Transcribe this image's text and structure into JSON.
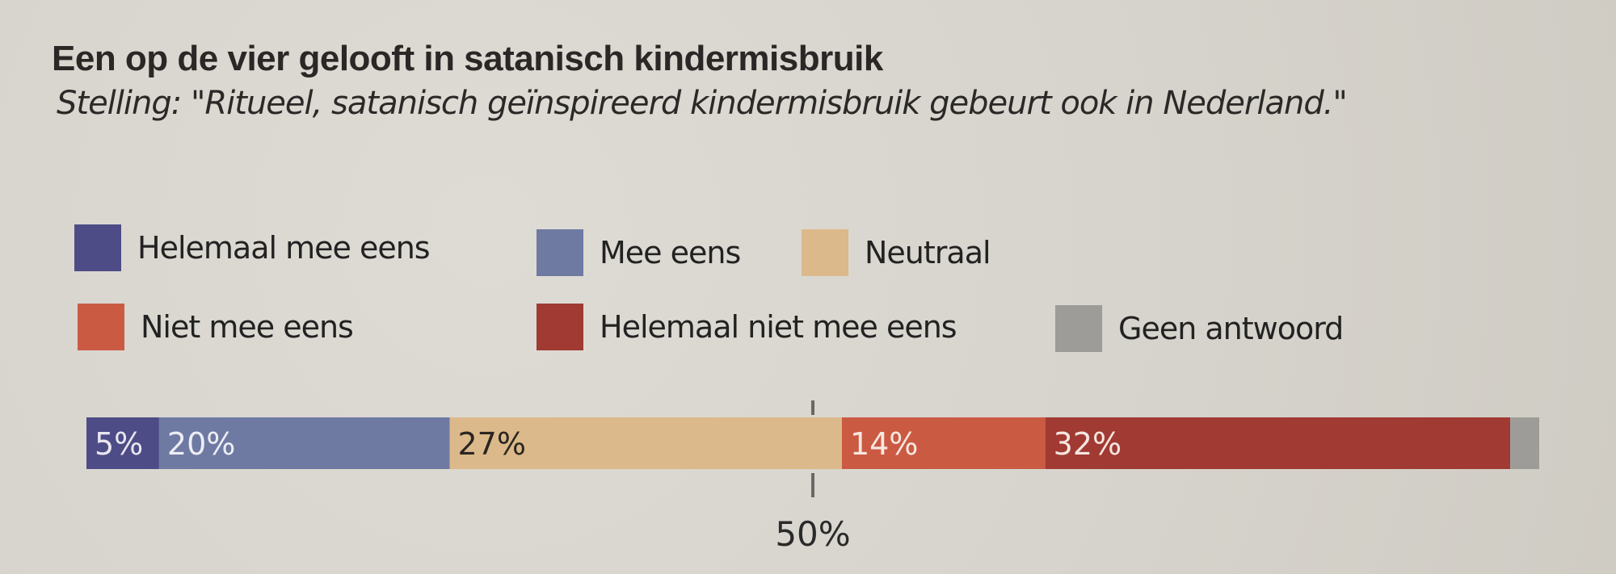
{
  "header": {
    "title": "Een op de vier gelooft in satanisch kindermisbruik",
    "subtitle": "Stelling: \"Ritueel, satanisch geïnspireerd kindermisbruik gebeurt ook in Nederland.\""
  },
  "chart_data": {
    "type": "bar",
    "orientation": "horizontal-stacked",
    "title": "Een op de vier gelooft in satanisch kindermisbruik",
    "subtitle": "Stelling: \"Ritueel, satanisch geïnspireerd kindermisbruik gebeurt ook in Nederland.\"",
    "xlim": [
      0,
      100
    ],
    "reference_line": {
      "value": 50,
      "label": "50%"
    },
    "legend_position": "top",
    "series": [
      {
        "name": "Helemaal mee eens",
        "value": 5,
        "label": "5%",
        "color": "#4e4c86",
        "label_color": "#e8e6f0"
      },
      {
        "name": "Mee eens",
        "value": 20,
        "label": "20%",
        "color": "#6f7aa3",
        "label_color": "#eceef4"
      },
      {
        "name": "Neutraal",
        "value": 27,
        "label": "27%",
        "color": "#dcb98a",
        "label_color": "#2a2522"
      },
      {
        "name": "Niet mee eens",
        "value": 14,
        "label": "14%",
        "color": "#cb5a43",
        "label_color": "#f6e8e0"
      },
      {
        "name": "Helemaal niet mee eens",
        "value": 32,
        "label": "32%",
        "color": "#a03a33",
        "label_color": "#f6e6e0"
      },
      {
        "name": "Geen antwoord",
        "value": 2,
        "label": "",
        "color": "#9e9c98",
        "label_color": "#ffffff"
      }
    ]
  }
}
